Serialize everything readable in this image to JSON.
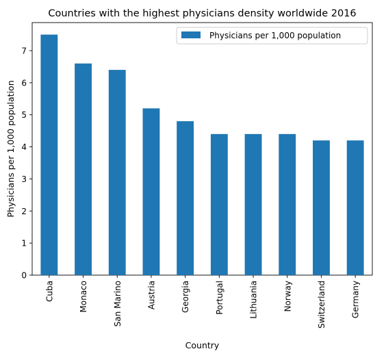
{
  "chart_data": {
    "type": "bar",
    "title": "Countries with the highest physicians density worldwide 2016",
    "xlabel": "Country",
    "ylabel": "Physicians per 1,000 population",
    "categories": [
      "Cuba",
      "Monaco",
      "San Marino",
      "Austria",
      "Georgia",
      "Portugal",
      "Lithuania",
      "Norway",
      "Switzerland",
      "Germany"
    ],
    "series": [
      {
        "name": "Physicians per 1,000 population",
        "values": [
          7.5,
          6.6,
          6.4,
          5.2,
          4.8,
          4.4,
          4.4,
          4.4,
          4.2,
          4.2
        ]
      }
    ],
    "ylim": [
      0,
      7.875
    ],
    "yticks": [
      0,
      1,
      2,
      3,
      4,
      5,
      6,
      7
    ],
    "grid": false,
    "legend_position": "top-right",
    "colors": {
      "bar": "#1f77b4"
    }
  }
}
